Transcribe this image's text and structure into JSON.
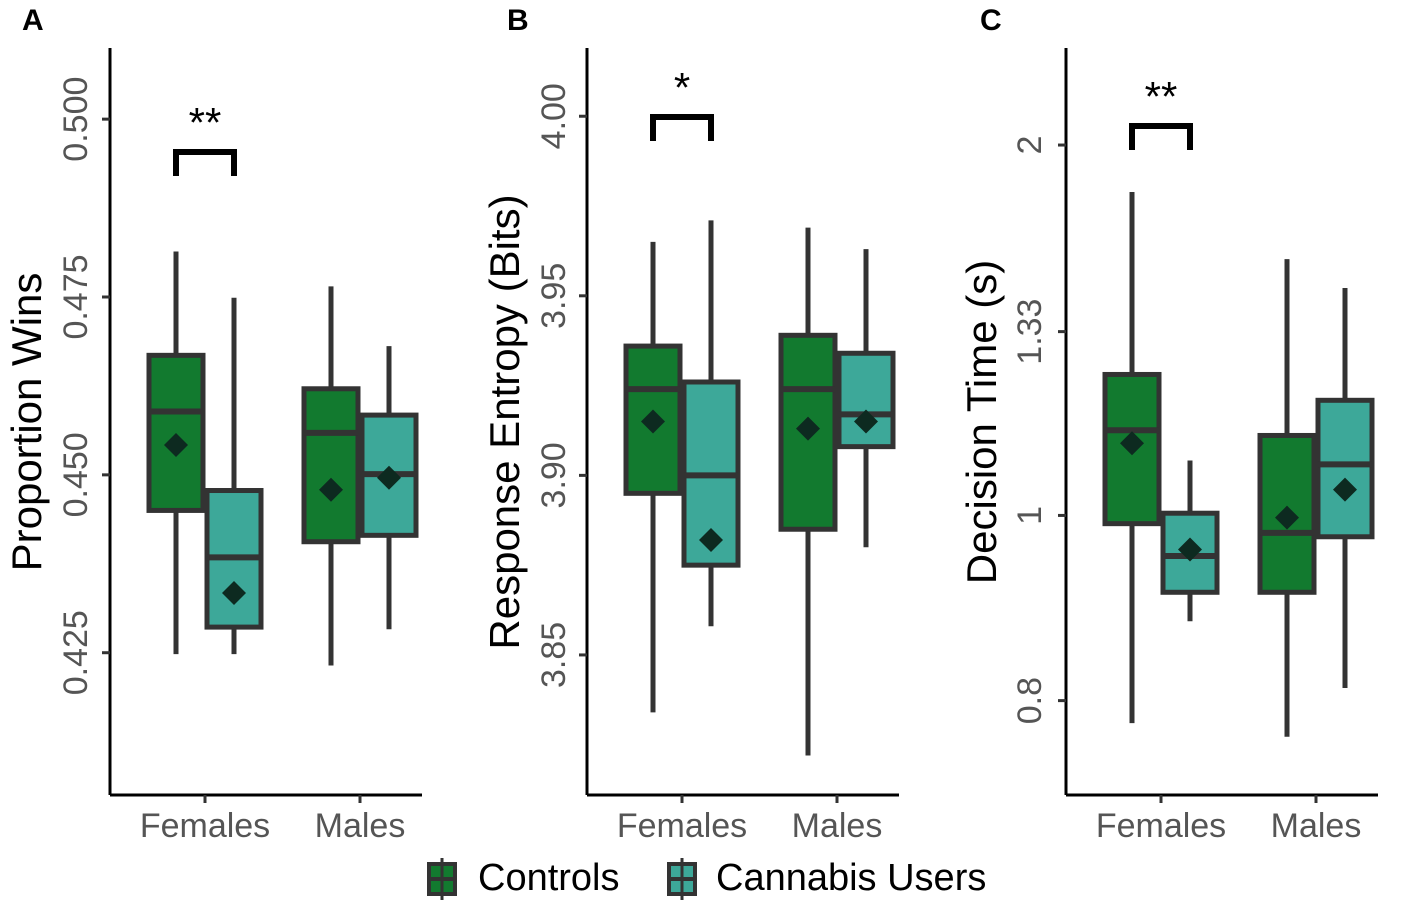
{
  "chart_data": [
    {
      "type": "box",
      "panel_label": "A",
      "ylabel": "Proportion Wins",
      "categories": [
        "Females",
        "Males"
      ],
      "ylim": [
        0.405,
        0.51
      ],
      "yticks": [
        {
          "value": 0.5,
          "label": "0.500"
        },
        0.475,
        {
          "value": 0.45,
          "label": "0.450"
        },
        0.425
      ],
      "annotation": "**",
      "series": [
        {
          "name": "Controls",
          "color": "#127a2f",
          "values": [
            {
              "min": 0.4248,
              "q1": 0.445,
              "median": 0.4589,
              "q3": 0.4668,
              "max": 0.4814,
              "mean": 0.4542
            },
            {
              "min": 0.4232,
              "q1": 0.4406,
              "median": 0.4559,
              "q3": 0.4621,
              "max": 0.4765,
              "mean": 0.4479
            }
          ]
        },
        {
          "name": "Cannabis Users",
          "color": "#3da899",
          "values": [
            {
              "min": 0.4248,
              "q1": 0.4286,
              "median": 0.4384,
              "q3": 0.4478,
              "max": 0.4749,
              "mean": 0.4334
            },
            {
              "min": 0.4283,
              "q1": 0.4415,
              "median": 0.4501,
              "q3": 0.4584,
              "max": 0.4681,
              "mean": 0.4496
            }
          ]
        }
      ]
    },
    {
      "type": "box",
      "panel_label": "B",
      "ylabel": "Response Entropy (Bits)",
      "categories": [
        "Females",
        "Males"
      ],
      "ylim": [
        3.811,
        4.019
      ],
      "yticks": [
        {
          "value": 4.0,
          "label": "4.00"
        },
        3.95,
        {
          "value": 3.9,
          "label": "3.90"
        },
        3.85
      ],
      "annotation": "*",
      "series": [
        {
          "name": "Controls",
          "color": "#127a2f",
          "values": [
            {
              "min": 3.834,
              "q1": 3.895,
              "median": 3.924,
              "q3": 3.936,
              "max": 3.965,
              "mean": 3.915
            },
            {
              "min": 3.822,
              "q1": 3.885,
              "median": 3.924,
              "q3": 3.939,
              "max": 3.969,
              "mean": 3.913
            }
          ]
        },
        {
          "name": "Cannabis Users",
          "color": "#3da899",
          "values": [
            {
              "min": 3.858,
              "q1": 3.875,
              "median": 3.9,
              "q3": 3.926,
              "max": 3.971,
              "mean": 3.882
            },
            {
              "min": 3.88,
              "q1": 3.908,
              "median": 3.917,
              "q3": 3.934,
              "max": 3.963,
              "mean": 3.915
            }
          ]
        }
      ]
    },
    {
      "type": "box",
      "panel_label": "C",
      "ylabel": "Decision Time (s)",
      "categories": [
        "Females",
        "Males"
      ],
      "scale": "reciprocal",
      "ylim": [
        0.726,
        2.71
      ],
      "yticks": [
        2,
        1.33,
        1,
        0.8
      ],
      "annotation": "**",
      "series": [
        {
          "name": "Controls",
          "color": "#127a2f",
          "values": [
            {
              "min": 0.781,
              "q1": 0.989,
              "median": 1.13,
              "q3": 1.235,
              "max": 1.775,
              "mean": 1.108
            },
            {
              "min": 0.77,
              "q1": 0.906,
              "median": 0.977,
              "q3": 1.121,
              "max": 1.529,
              "mean": 0.997
            }
          ]
        },
        {
          "name": "Cannabis Users",
          "color": "#3da899",
          "values": [
            {
              "min": 0.875,
              "q1": 0.906,
              "median": 0.948,
              "q3": 1.003,
              "max": 1.08,
              "mean": 0.956
            },
            {
              "min": 0.811,
              "q1": 0.972,
              "median": 1.074,
              "q3": 1.184,
              "max": 1.443,
              "mean": 1.036
            }
          ]
        }
      ]
    }
  ]
}
